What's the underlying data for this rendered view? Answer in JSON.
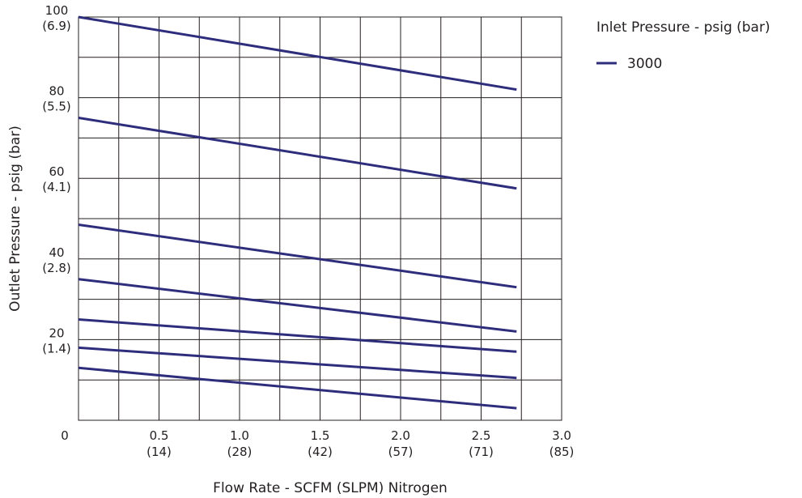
{
  "chart_data": {
    "type": "line",
    "title": "",
    "xlabel": "Flow Rate - SCFM (SLPM) Nitrogen",
    "ylabel": "Outlet Pressure - psig (bar)",
    "xlim": [
      0,
      3.0
    ],
    "ylim": [
      0,
      100
    ],
    "grid": true,
    "x_ticks": [
      {
        "value": 0,
        "label": "0",
        "sub": ""
      },
      {
        "value": 0.5,
        "label": "0.5",
        "sub": "(14)"
      },
      {
        "value": 1.0,
        "label": "1.0",
        "sub": "(28)"
      },
      {
        "value": 1.5,
        "label": "1.5",
        "sub": "(42)"
      },
      {
        "value": 2.0,
        "label": "2.0",
        "sub": "(57)"
      },
      {
        "value": 2.5,
        "label": "2.5",
        "sub": "(71)"
      },
      {
        "value": 3.0,
        "label": "3.0",
        "sub": "(85)"
      }
    ],
    "y_ticks": [
      {
        "value": 20,
        "label": "20",
        "sub": "(1.4)"
      },
      {
        "value": 40,
        "label": "40",
        "sub": "(2.8)"
      },
      {
        "value": 60,
        "label": "60",
        "sub": "(4.1)"
      },
      {
        "value": 80,
        "label": "80",
        "sub": "(5.5)"
      },
      {
        "value": 100,
        "label": "100",
        "sub": "(6.9)"
      }
    ],
    "x_grid_step": 0.25,
    "y_grid_step": 10,
    "legend": {
      "title": "Inlet Pressure - psig (bar)",
      "placement": "right",
      "entries": [
        {
          "label": "3000",
          "color": "#2e2d7c"
        }
      ]
    },
    "series_color": "#2e2d7c",
    "series": [
      {
        "values": [
          [
            0,
            100
          ],
          [
            2.72,
            82
          ]
        ]
      },
      {
        "values": [
          [
            0,
            75
          ],
          [
            2.72,
            57.5
          ]
        ]
      },
      {
        "values": [
          [
            0,
            48.5
          ],
          [
            2.72,
            33
          ]
        ]
      },
      {
        "values": [
          [
            0,
            35
          ],
          [
            2.72,
            22
          ]
        ]
      },
      {
        "values": [
          [
            0,
            25
          ],
          [
            2.72,
            17
          ]
        ]
      },
      {
        "values": [
          [
            0,
            18
          ],
          [
            2.72,
            10.5
          ]
        ]
      },
      {
        "values": [
          [
            0,
            13
          ],
          [
            2.72,
            3
          ]
        ]
      }
    ]
  }
}
